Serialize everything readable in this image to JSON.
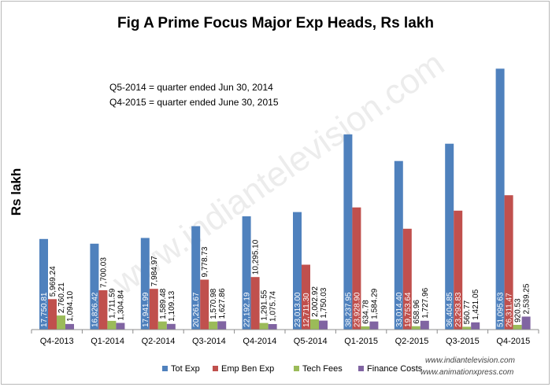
{
  "chart_data": {
    "type": "bar",
    "title": "Fig A Prime Focus Major Exp Heads, Rs lakh",
    "xlabel": "",
    "ylabel": "Rs lakh",
    "ylim": [
      0,
      55000
    ],
    "categories": [
      "Q4-2013",
      "Q1-2014",
      "Q2-2014",
      "Q3-2014",
      "Q4-2014",
      "Q5-2014",
      "Q1-2015",
      "Q2-2015",
      "Q3-2015",
      "Q4-2015"
    ],
    "series": [
      {
        "name": "Tot Exp",
        "color": "#4f81bd",
        "values": [
          17750.81,
          16826.42,
          17941.99,
          20261.67,
          22192.19,
          23013.0,
          38237.95,
          33014.4,
          36404.85,
          51095.63
        ],
        "labels": [
          "17,750.81",
          "16,826.42",
          "17,941.99",
          "20,261.67",
          "22,192.19",
          "23,013.00",
          "38,237.95",
          "33,014.40",
          "36,404.85",
          "51,095.63"
        ]
      },
      {
        "name": "Emp Ben Exp",
        "color": "#c0504d",
        "values": [
          5969.24,
          7700.03,
          7984.97,
          9778.73,
          10295.1,
          12711.3,
          23928.9,
          19753.64,
          23293.83,
          26311.47
        ],
        "labels": [
          "5,969.24",
          "7,700.03",
          "7,984.97",
          "9,778.73",
          "10,295.10",
          "12,711.30",
          "23,928.90",
          "19,753.64",
          "23,293.83",
          "26,311.47"
        ]
      },
      {
        "name": "Tech Fees",
        "color": "#9bbb59",
        "values": [
          2760.21,
          1711.59,
          1589.48,
          1570.98,
          1291.55,
          2002.92,
          634.78,
          658.96,
          560.77,
          920.53
        ],
        "labels": [
          "2,760.21",
          "1,711.59",
          "1,589.48",
          "1,570.98",
          "1,291.55",
          "2,002.92",
          "634.78",
          "658.96",
          "560.77",
          "920.53"
        ]
      },
      {
        "name": "Finance Costs",
        "color": "#8064a2",
        "values": [
          1094.1,
          1304.84,
          1109.13,
          1627.86,
          1075.74,
          1750.03,
          1584.29,
          1727.96,
          1421.05,
          2539.25
        ],
        "labels": [
          "1,094.10",
          "1,304.84",
          "1,109.13",
          "1,627.86",
          "1,075.74",
          "1,750.03",
          "1,584.29",
          "1,727.96",
          "1,421.05",
          "2,539.25"
        ]
      }
    ],
    "annotations": [
      "Q5-2014 = quarter ended Jun 30, 2014",
      "Q4-2015 = quarter ended June 30, 2015"
    ],
    "legend_position": "bottom",
    "grid": false
  },
  "watermark": "www.indiantelevision.com",
  "credits": [
    "www.indiantelevision.com",
    "www.animationxpress.com"
  ]
}
